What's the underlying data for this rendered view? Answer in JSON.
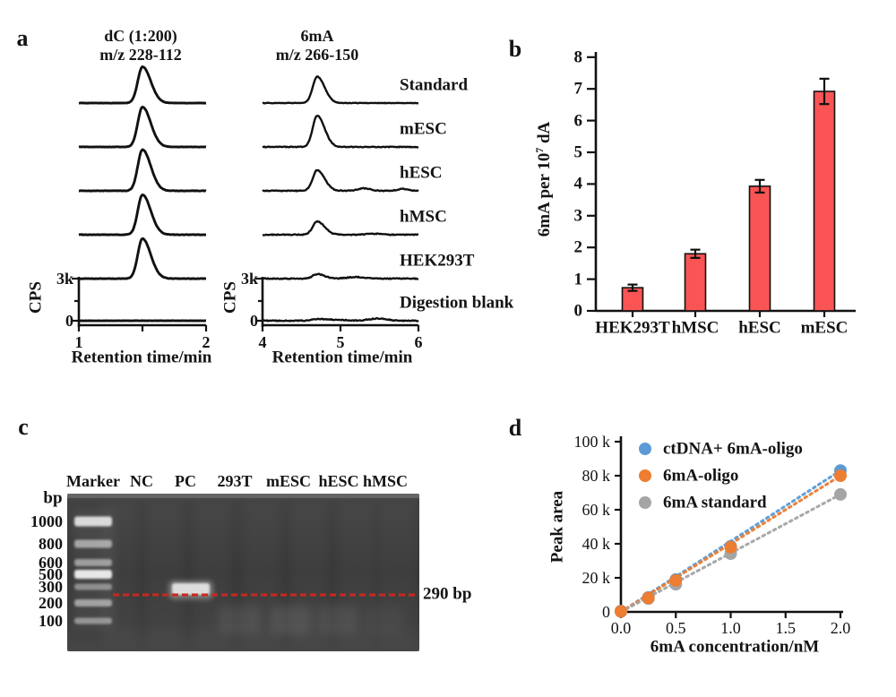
{
  "panels": {
    "a": {
      "label": "a",
      "trace_labels": [
        "Standard",
        "mESC",
        "hESC",
        "hMSC",
        "HEK293T",
        "Digestion blank"
      ],
      "left": {
        "title1": "dC (1:200)",
        "title2": "m/z 228-112",
        "ylabel": "CPS",
        "y_tick_top": "3k",
        "y_tick_zero": "0",
        "x_ticks": [
          "1",
          "2"
        ],
        "xlabel": "Retention time/min",
        "peak_retention_min": 1.5,
        "peak_intensities": [
          0.88,
          0.97,
          1.0,
          0.97,
          0.97,
          0
        ]
      },
      "right": {
        "title1": "6mA",
        "title2": "m/z 266-150",
        "ylabel": "CPS",
        "y_tick_top": "3k",
        "y_tick_zero": "0",
        "x_ticks": [
          "4",
          "5",
          "6"
        ],
        "xlabel": "Retention time/min",
        "peak_retention_min": 4.7,
        "peak_intensities": [
          0.64,
          0.76,
          0.5,
          0.32,
          0.11,
          0.03
        ]
      }
    },
    "b": {
      "label": "b",
      "chart_data": {
        "type": "bar",
        "categories": [
          "HEK293T",
          "hMSC",
          "hESC",
          "mESC"
        ],
        "values": [
          0.73,
          1.8,
          3.93,
          6.92
        ],
        "errors": [
          0.1,
          0.13,
          0.2,
          0.4
        ],
        "ylabel": "6mA per 10^7 dA",
        "ylabel_parts": {
          "pre": "6mA per 10",
          "sup": "7",
          "post": " dA"
        },
        "ylim": [
          0,
          8
        ],
        "yticks": [
          "0",
          "1",
          "2",
          "3",
          "4",
          "5",
          "6",
          "7",
          "8"
        ],
        "bar_color": "#fa5454",
        "grid": false
      }
    },
    "c": {
      "label": "c",
      "units_label": "bp",
      "lane_headers": [
        "Marker",
        "NC",
        "PC",
        "293T",
        "mESC",
        "hESC",
        "hMSC"
      ],
      "ladder_labels": [
        "1000",
        "800",
        "600",
        "500",
        "300",
        "200",
        "100"
      ],
      "annotation": "290 bp",
      "pc_band_bp": 290,
      "dashed_line_color": "#c9281e"
    },
    "d": {
      "label": "d",
      "chart_data": {
        "type": "scatter",
        "x": [
          0,
          0.25,
          0.5,
          1.0,
          2.0
        ],
        "series": [
          {
            "name": "ctDNA+ 6mA-oligo",
            "color": "#5b9bd5",
            "values": [
              500,
              8500,
              19000,
              38500,
              83000
            ]
          },
          {
            "name": "6mA-oligo",
            "color": "#ed7d31",
            "values": [
              300,
              8200,
              18500,
              38000,
              80000
            ]
          },
          {
            "name": "6mA standard",
            "color": "#a5a5a5",
            "values": [
              200,
              7800,
              16200,
              34200,
              69000
            ]
          }
        ],
        "trendlines": "dotted",
        "legend_position": "top-left",
        "xlabel": "6mA concentration/nM",
        "ylabel": "Peak area",
        "xticks": [
          "0.0",
          "0.5",
          "1.0",
          "1.5",
          "2.0"
        ],
        "yticks": [
          "0",
          "20 k",
          "40 k",
          "60 k",
          "80 k",
          "100 k"
        ],
        "xlim": [
          0,
          2.0
        ],
        "ylim": [
          0,
          100000
        ],
        "grid": false
      }
    }
  }
}
